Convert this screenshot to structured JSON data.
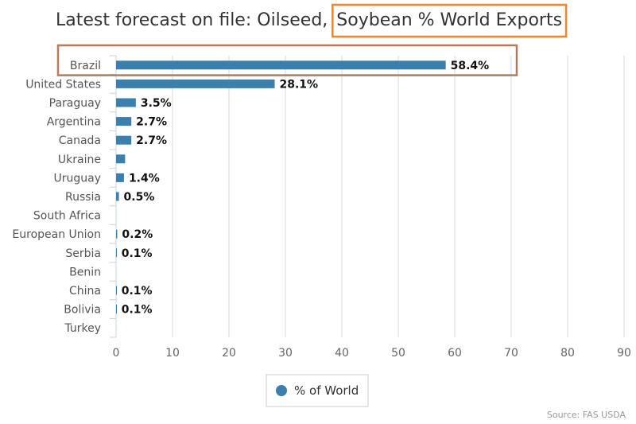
{
  "chart_data": {
    "type": "bar",
    "orientation": "horizontal",
    "title_prefix": "Latest forecast on file: Oilseed, ",
    "title_highlight": "Soybean % World Exports",
    "categories": [
      "Brazil",
      "United States",
      "Paraguay",
      "Argentina",
      "Canada",
      "Ukraine",
      "Uruguay",
      "Russia",
      "South Africa",
      "European Union",
      "Serbia",
      "Benin",
      "China",
      "Bolivia",
      "Turkey"
    ],
    "series": [
      {
        "name": "% of World",
        "values": [
          58.4,
          28.1,
          3.5,
          2.7,
          2.7,
          1.6,
          1.4,
          0.5,
          0,
          0.2,
          0.1,
          0,
          0.1,
          0.1,
          0
        ],
        "data_labels": [
          "58.4%",
          "28.1%",
          "3.5%",
          "2.7%",
          "2.7%",
          "",
          "1.4%",
          "0.5%",
          "",
          "0.2%",
          "0.1%",
          "",
          "0.1%",
          "0.1%",
          ""
        ]
      }
    ],
    "xlim": [
      0,
      90
    ],
    "xticks": [
      0,
      10,
      20,
      30,
      40,
      50,
      60,
      70,
      80,
      90
    ],
    "grid": true,
    "legend_position": "bottom-center",
    "highlighted_category": "Brazil",
    "source": "Source: FAS USDA",
    "colors": {
      "bar": "#3a7fad",
      "title_highlight_box": "#f0882a",
      "category_highlight_box": "#b07d5e",
      "grid": "#d9d9d9"
    }
  }
}
